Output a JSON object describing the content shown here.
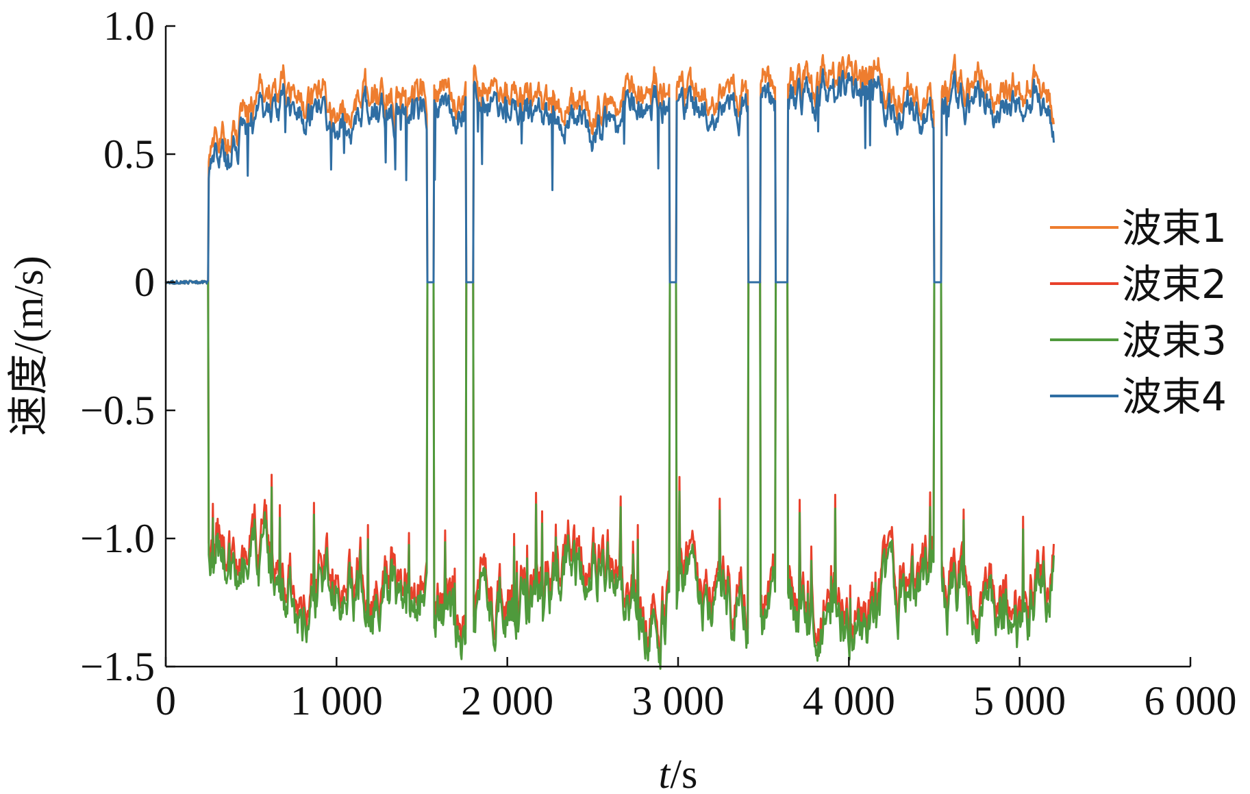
{
  "chart_data": {
    "type": "line",
    "xlabel_italic": "t",
    "xlabel_rest": "/s",
    "ylabel": "速度/(m/s)",
    "xlim": [
      0,
      6000
    ],
    "ylim": [
      -1.5,
      1.0
    ],
    "x_ticks": [
      0,
      1000,
      2000,
      3000,
      4000,
      5000,
      6000
    ],
    "x_tick_labels": [
      "0",
      "1 000",
      "2 000",
      "3 000",
      "4 000",
      "5 000",
      "6 000"
    ],
    "y_ticks": [
      1.0,
      0.5,
      0,
      -0.5,
      -1.0,
      -1.5
    ],
    "y_tick_labels": [
      "1.0",
      "0.5",
      "0",
      "−0.5",
      "−1.0",
      "−1.5"
    ],
    "grid": false,
    "legend_position": "right",
    "series": [
      {
        "name": "波束1",
        "color": "#ee7d2f"
      },
      {
        "name": "波束2",
        "color": "#e8412b"
      },
      {
        "name": "波束3",
        "color": "#4f9a3c"
      },
      {
        "name": "波束4",
        "color": "#2f6ea3"
      }
    ],
    "dropouts": [
      [
        0,
        250
      ],
      [
        1530,
        1570
      ],
      [
        1760,
        1800
      ],
      [
        2950,
        2990
      ],
      [
        3410,
        3480
      ],
      [
        3570,
        3640
      ],
      [
        4500,
        4540
      ]
    ],
    "upper_trend": {
      "x": [
        250,
        300,
        360,
        400,
        500,
        700,
        800,
        1000,
        1300,
        1500,
        1600,
        1800,
        2000,
        2300,
        2500,
        2700,
        2800,
        3000,
        3200,
        3400,
        3500,
        3600,
        3800,
        4000,
        4200,
        4400,
        4600,
        4800,
        5000,
        5100,
        5200
      ],
      "y": [
        0.52,
        0.55,
        0.45,
        0.62,
        0.66,
        0.7,
        0.68,
        0.64,
        0.69,
        0.7,
        0.71,
        0.72,
        0.73,
        0.68,
        0.6,
        0.66,
        0.75,
        0.73,
        0.68,
        0.72,
        0.75,
        0.7,
        0.76,
        0.78,
        0.72,
        0.68,
        0.72,
        0.68,
        0.72,
        0.75,
        0.62
      ]
    },
    "lower_trend": {
      "x": [
        250,
        300,
        360,
        400,
        500,
        700,
        800,
        1000,
        1300,
        1500,
        1600,
        1800,
        2000,
        2300,
        2500,
        2700,
        2800,
        3000,
        3200,
        3400,
        3500,
        3600,
        3800,
        4000,
        4200,
        4400,
        4600,
        4800,
        5000,
        5100,
        5200
      ],
      "y": [
        -1.0,
        -0.95,
        -1.08,
        -1.15,
        -1.05,
        -1.2,
        -1.28,
        -1.1,
        -1.18,
        -1.2,
        -1.28,
        -1.3,
        -1.22,
        -1.12,
        -1.05,
        -1.15,
        -1.35,
        -1.25,
        -1.2,
        -1.25,
        -1.38,
        -1.2,
        -1.28,
        -1.3,
        -1.25,
        -1.18,
        -1.22,
        -1.25,
        -1.35,
        -1.2,
        -1.05
      ]
    }
  }
}
